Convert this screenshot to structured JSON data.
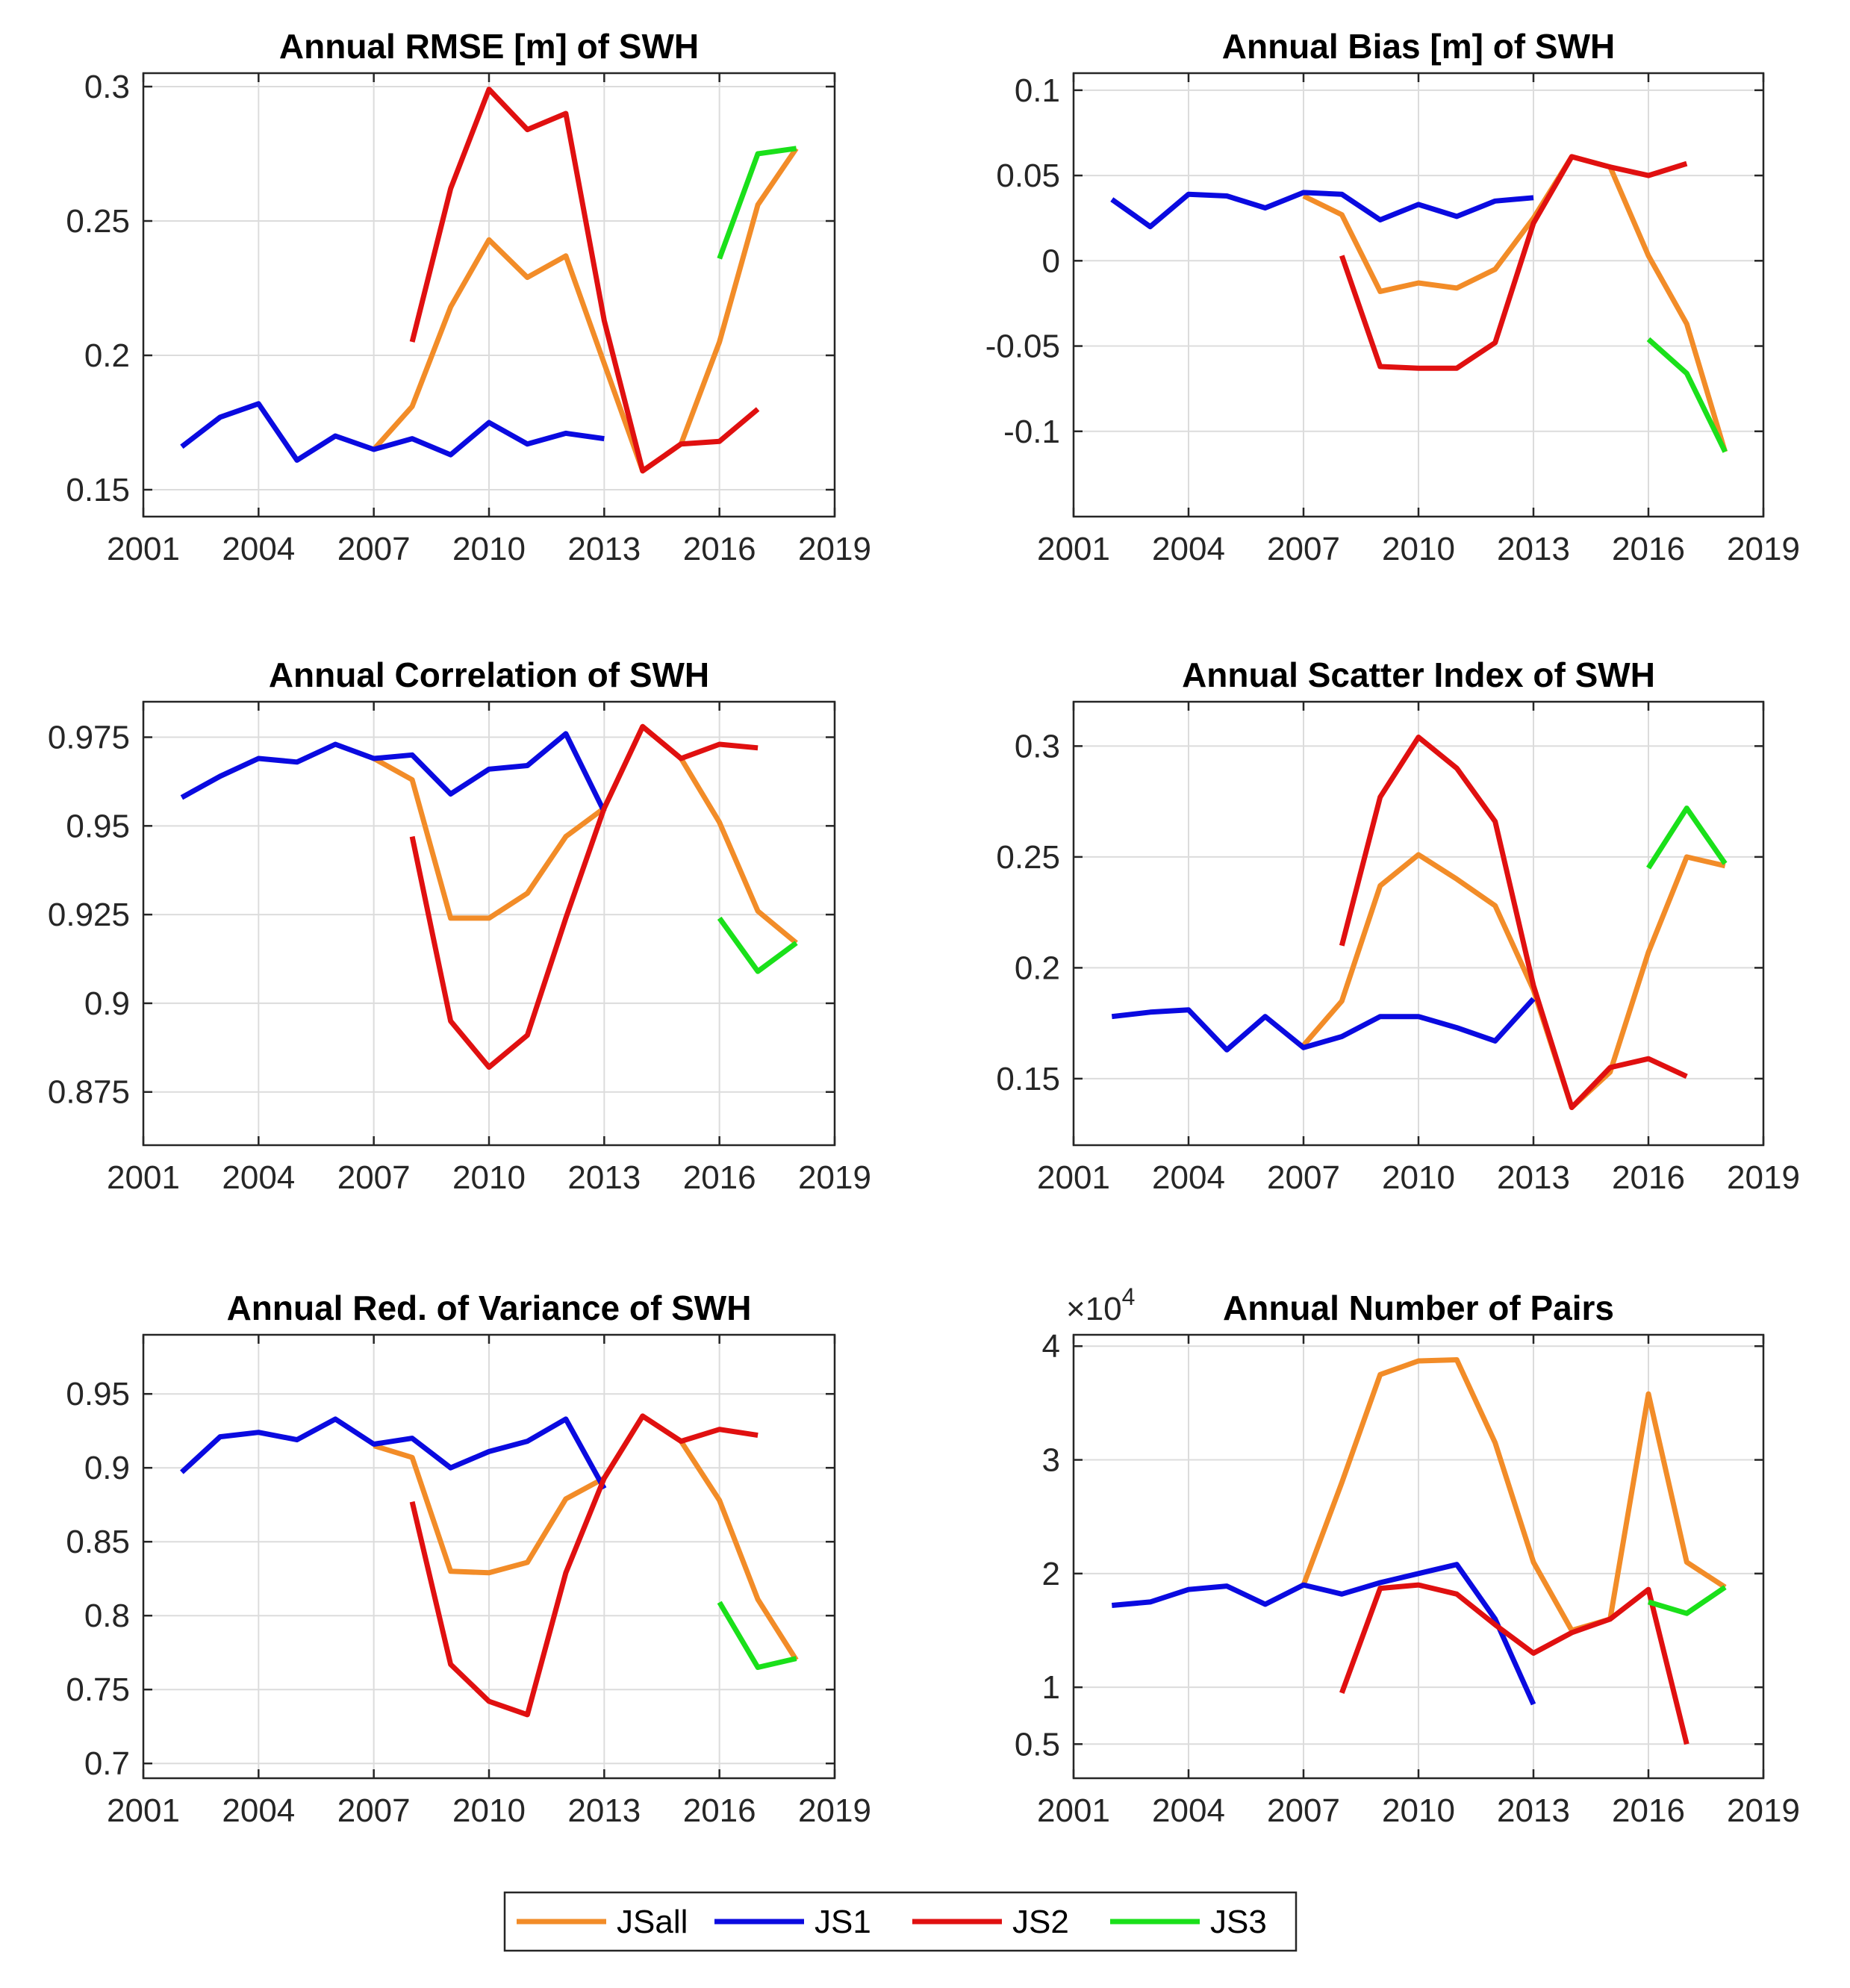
{
  "legend": {
    "entries": [
      {
        "label": "JSall",
        "color": "#F28C28"
      },
      {
        "label": "JS1",
        "color": "#0A0AE0"
      },
      {
        "label": "JS2",
        "color": "#E01010"
      },
      {
        "label": "JS3",
        "color": "#1AE01A"
      }
    ]
  },
  "chart_data": [
    {
      "type": "line",
      "title": "Annual RMSE [m] of SWH",
      "xlim": [
        2001,
        2019
      ],
      "xticks": [
        2001,
        2004,
        2007,
        2010,
        2013,
        2016,
        2019
      ],
      "ylim": [
        0.14,
        0.305
      ],
      "yticks": [
        0.15,
        0.2,
        0.25,
        0.3
      ],
      "ytick_labels": [
        "0.15",
        "0.2",
        "0.25",
        "0.3"
      ],
      "grid": true,
      "series": [
        {
          "name": "JSall",
          "color": "#F28C28",
          "x": [
            2007,
            2008,
            2009,
            2010,
            2011,
            2012,
            2013,
            2014,
            2015,
            2016,
            2017,
            2018
          ],
          "y": [
            0.165,
            0.181,
            0.218,
            0.243,
            0.229,
            0.237,
            0.197,
            0.157,
            0.167,
            0.205,
            0.256,
            0.277
          ]
        },
        {
          "name": "JS1",
          "color": "#0A0AE0",
          "x": [
            2002,
            2003,
            2004,
            2005,
            2006,
            2007,
            2008,
            2009,
            2010,
            2011,
            2012,
            2013
          ],
          "y": [
            0.166,
            0.177,
            0.182,
            0.161,
            0.17,
            0.165,
            0.169,
            0.163,
            0.175,
            0.167,
            0.171,
            0.169
          ]
        },
        {
          "name": "JS2",
          "color": "#E01010",
          "x": [
            2008,
            2009,
            2010,
            2011,
            2012,
            2013,
            2014,
            2015,
            2016,
            2017
          ],
          "y": [
            0.205,
            0.262,
            0.299,
            0.284,
            0.29,
            0.213,
            0.157,
            0.167,
            0.168,
            0.18
          ]
        },
        {
          "name": "JS3",
          "color": "#1AE01A",
          "x": [
            2016,
            2017,
            2018
          ],
          "y": [
            0.236,
            0.275,
            0.277
          ]
        }
      ]
    },
    {
      "type": "line",
      "title": "Annual Bias [m] of SWH",
      "xlim": [
        2001,
        2019
      ],
      "xticks": [
        2001,
        2004,
        2007,
        2010,
        2013,
        2016,
        2019
      ],
      "ylim": [
        -0.15,
        0.11
      ],
      "yticks": [
        -0.1,
        -0.05,
        0,
        0.05,
        0.1
      ],
      "ytick_labels": [
        "-0.1",
        "-0.05",
        "0",
        "0.05",
        "0.1"
      ],
      "grid": true,
      "series": [
        {
          "name": "JSall",
          "color": "#F28C28",
          "x": [
            2007,
            2008,
            2009,
            2010,
            2011,
            2012,
            2013,
            2014,
            2015,
            2016,
            2017,
            2018
          ],
          "y": [
            0.038,
            0.027,
            -0.018,
            -0.013,
            -0.016,
            -0.005,
            0.025,
            0.061,
            0.055,
            0.003,
            -0.037,
            -0.112
          ]
        },
        {
          "name": "JS1",
          "color": "#0A0AE0",
          "x": [
            2002,
            2003,
            2004,
            2005,
            2006,
            2007,
            2008,
            2009,
            2010,
            2011,
            2012,
            2013
          ],
          "y": [
            0.036,
            0.02,
            0.039,
            0.038,
            0.031,
            0.04,
            0.039,
            0.024,
            0.033,
            0.026,
            0.035,
            0.037
          ]
        },
        {
          "name": "JS2",
          "color": "#E01010",
          "x": [
            2008,
            2009,
            2010,
            2011,
            2012,
            2013,
            2014,
            2015,
            2016,
            2017
          ],
          "y": [
            0.003,
            -0.062,
            -0.063,
            -0.063,
            -0.048,
            0.022,
            0.061,
            0.055,
            0.05,
            0.057
          ]
        },
        {
          "name": "JS3",
          "color": "#1AE01A",
          "x": [
            2016,
            2017,
            2018
          ],
          "y": [
            -0.046,
            -0.066,
            -0.112
          ]
        }
      ]
    },
    {
      "type": "line",
      "title": "Annual Correlation of SWH",
      "xlim": [
        2001,
        2019
      ],
      "xticks": [
        2001,
        2004,
        2007,
        2010,
        2013,
        2016,
        2019
      ],
      "ylim": [
        0.86,
        0.985
      ],
      "yticks": [
        0.875,
        0.9,
        0.925,
        0.95,
        0.975
      ],
      "ytick_labels": [
        "0.875",
        "0.9",
        "0.925",
        "0.95",
        "0.975"
      ],
      "grid": true,
      "series": [
        {
          "name": "JSall",
          "color": "#F28C28",
          "x": [
            2007,
            2008,
            2009,
            2010,
            2011,
            2012,
            2013,
            2014,
            2015,
            2016,
            2017,
            2018
          ],
          "y": [
            0.969,
            0.963,
            0.924,
            0.924,
            0.931,
            0.947,
            0.955,
            0.978,
            0.969,
            0.951,
            0.926,
            0.917
          ]
        },
        {
          "name": "JS1",
          "color": "#0A0AE0",
          "x": [
            2002,
            2003,
            2004,
            2005,
            2006,
            2007,
            2008,
            2009,
            2010,
            2011,
            2012,
            2013
          ],
          "y": [
            0.958,
            0.964,
            0.969,
            0.968,
            0.973,
            0.969,
            0.97,
            0.959,
            0.966,
            0.967,
            0.976,
            0.954
          ]
        },
        {
          "name": "JS2",
          "color": "#E01010",
          "x": [
            2008,
            2009,
            2010,
            2011,
            2012,
            2013,
            2014,
            2015,
            2016,
            2017
          ],
          "y": [
            0.947,
            0.895,
            0.882,
            0.891,
            0.924,
            0.955,
            0.978,
            0.969,
            0.973,
            0.972
          ]
        },
        {
          "name": "JS3",
          "color": "#1AE01A",
          "x": [
            2016,
            2017,
            2018
          ],
          "y": [
            0.924,
            0.909,
            0.917
          ]
        }
      ]
    },
    {
      "type": "line",
      "title": "Annual Scatter Index of SWH",
      "xlim": [
        2001,
        2019
      ],
      "xticks": [
        2001,
        2004,
        2007,
        2010,
        2013,
        2016,
        2019
      ],
      "ylim": [
        0.12,
        0.32
      ],
      "yticks": [
        0.15,
        0.2,
        0.25,
        0.3
      ],
      "ytick_labels": [
        "0.15",
        "0.2",
        "0.25",
        "0.3"
      ],
      "grid": true,
      "series": [
        {
          "name": "JSall",
          "color": "#F28C28",
          "x": [
            2007,
            2008,
            2009,
            2010,
            2011,
            2012,
            2013,
            2014,
            2015,
            2016,
            2017,
            2018
          ],
          "y": [
            0.165,
            0.185,
            0.237,
            0.251,
            0.24,
            0.228,
            0.19,
            0.137,
            0.153,
            0.207,
            0.25,
            0.246
          ]
        },
        {
          "name": "JS1",
          "color": "#0A0AE0",
          "x": [
            2002,
            2003,
            2004,
            2005,
            2006,
            2007,
            2008,
            2009,
            2010,
            2011,
            2012,
            2013
          ],
          "y": [
            0.178,
            0.18,
            0.181,
            0.163,
            0.178,
            0.164,
            0.169,
            0.178,
            0.178,
            0.173,
            0.167,
            0.186
          ]
        },
        {
          "name": "JS2",
          "color": "#E01010",
          "x": [
            2008,
            2009,
            2010,
            2011,
            2012,
            2013,
            2014,
            2015,
            2016,
            2017
          ],
          "y": [
            0.21,
            0.277,
            0.304,
            0.29,
            0.266,
            0.192,
            0.137,
            0.155,
            0.159,
            0.151
          ]
        },
        {
          "name": "JS3",
          "color": "#1AE01A",
          "x": [
            2016,
            2017,
            2018
          ],
          "y": [
            0.245,
            0.272,
            0.247
          ]
        }
      ]
    },
    {
      "type": "line",
      "title": "Annual Red. of Variance of SWH",
      "xlim": [
        2001,
        2019
      ],
      "xticks": [
        2001,
        2004,
        2007,
        2010,
        2013,
        2016,
        2019
      ],
      "ylim": [
        0.69,
        0.99
      ],
      "yticks": [
        0.7,
        0.75,
        0.8,
        0.85,
        0.9,
        0.95
      ],
      "ytick_labels": [
        "0.7",
        "0.75",
        "0.8",
        "0.85",
        "0.9",
        "0.95"
      ],
      "grid": true,
      "series": [
        {
          "name": "JSall",
          "color": "#F28C28",
          "x": [
            2007,
            2008,
            2009,
            2010,
            2011,
            2012,
            2013,
            2014,
            2015,
            2016,
            2017,
            2018
          ],
          "y": [
            0.915,
            0.907,
            0.83,
            0.829,
            0.836,
            0.879,
            0.893,
            0.935,
            0.918,
            0.878,
            0.811,
            0.77
          ]
        },
        {
          "name": "JS1",
          "color": "#0A0AE0",
          "x": [
            2002,
            2003,
            2004,
            2005,
            2006,
            2007,
            2008,
            2009,
            2010,
            2011,
            2012,
            2013
          ],
          "y": [
            0.897,
            0.921,
            0.924,
            0.919,
            0.933,
            0.916,
            0.92,
            0.9,
            0.911,
            0.918,
            0.933,
            0.886
          ]
        },
        {
          "name": "JS2",
          "color": "#E01010",
          "x": [
            2008,
            2009,
            2010,
            2011,
            2012,
            2013,
            2014,
            2015,
            2016,
            2017
          ],
          "y": [
            0.877,
            0.767,
            0.742,
            0.733,
            0.829,
            0.893,
            0.935,
            0.918,
            0.926,
            0.922
          ]
        },
        {
          "name": "JS3",
          "color": "#1AE01A",
          "x": [
            2016,
            2017,
            2018
          ],
          "y": [
            0.809,
            0.765,
            0.771
          ]
        }
      ]
    },
    {
      "type": "line",
      "title": "Annual Number of Pairs",
      "y_multiplier": "×10",
      "y_multiplier_exponent": "4",
      "xlim": [
        2001,
        2019
      ],
      "xticks": [
        2001,
        2004,
        2007,
        2010,
        2013,
        2016,
        2019
      ],
      "ylim": [
        0.2,
        4.1
      ],
      "yticks": [
        0.5,
        1,
        2,
        3,
        4
      ],
      "ytick_labels": [
        "0.5",
        "1",
        "2",
        "3",
        "4"
      ],
      "grid": true,
      "series": [
        {
          "name": "JSall",
          "color": "#F28C28",
          "x": [
            2007,
            2008,
            2009,
            2010,
            2011,
            2012,
            2013,
            2014,
            2015,
            2016,
            2017,
            2018
          ],
          "y": [
            1.9,
            2.8,
            3.75,
            3.87,
            3.88,
            3.15,
            2.1,
            1.5,
            1.6,
            3.58,
            2.1,
            1.88
          ]
        },
        {
          "name": "JS1",
          "color": "#0A0AE0",
          "x": [
            2002,
            2003,
            2004,
            2005,
            2006,
            2007,
            2008,
            2009,
            2010,
            2011,
            2012,
            2013
          ],
          "y": [
            1.72,
            1.75,
            1.86,
            1.89,
            1.73,
            1.9,
            1.82,
            1.92,
            2.0,
            2.08,
            1.6,
            0.85
          ]
        },
        {
          "name": "JS2",
          "color": "#E01010",
          "x": [
            2008,
            2009,
            2010,
            2011,
            2012,
            2013,
            2014,
            2015,
            2016,
            2017
          ],
          "y": [
            0.95,
            1.87,
            1.9,
            1.82,
            1.55,
            1.3,
            1.48,
            1.6,
            1.86,
            0.5
          ]
        },
        {
          "name": "JS3",
          "color": "#1AE01A",
          "x": [
            2016,
            2017,
            2018
          ],
          "y": [
            1.75,
            1.65,
            1.88
          ]
        }
      ]
    }
  ]
}
